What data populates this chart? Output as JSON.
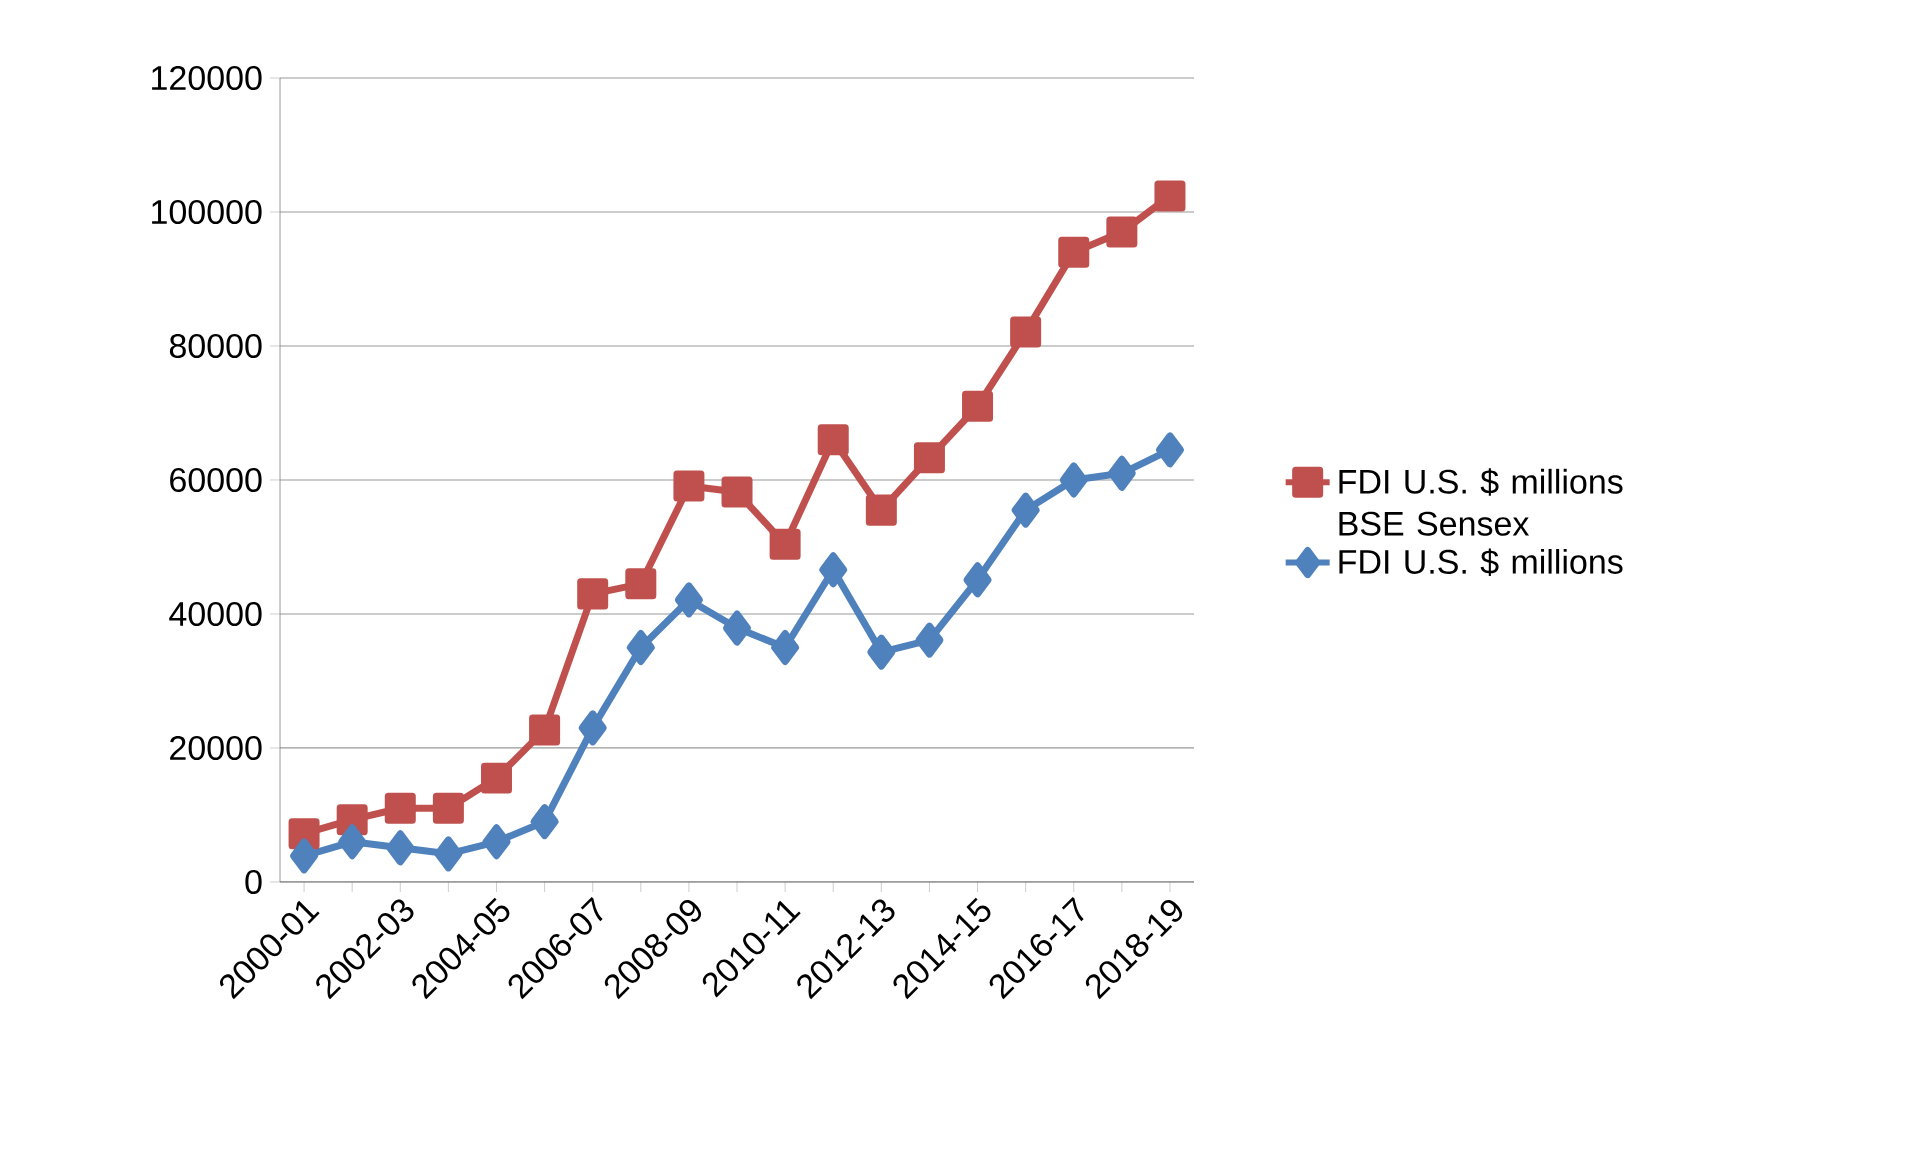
{
  "chart_data": {
    "type": "line",
    "categories": [
      "2000-01",
      null,
      "2002-03",
      null,
      "2004-05",
      null,
      "2006-07",
      null,
      "2008-09",
      null,
      "2010-11",
      null,
      "2012-13",
      null,
      "2014-15",
      null,
      "2016-17",
      null,
      "2018-19"
    ],
    "series": [
      {
        "name": "FDI U.S. $ millions BSE Sensex",
        "color": "#c0504d",
        "marker": "square",
        "values": [
          7200,
          9300,
          11000,
          11000,
          15500,
          22700,
          43000,
          44500,
          59100,
          58200,
          50400,
          66000,
          55500,
          63300,
          71000,
          82100,
          94000,
          97000,
          102400
        ]
      },
      {
        "name": "FDI U.S. $ millions",
        "color": "#4f81bd",
        "marker": "diamond",
        "values": [
          3900,
          6000,
          5100,
          4200,
          6000,
          9000,
          23000,
          35000,
          42100,
          37900,
          35000,
          46600,
          34300,
          36100,
          45100,
          55500,
          60000,
          61000,
          64500
        ]
      }
    ],
    "ylim": [
      0,
      120000
    ],
    "yticks": [
      0,
      20000,
      40000,
      60000,
      80000,
      100000,
      120000
    ],
    "grid": "y",
    "legend": "right",
    "line_style": "solid"
  }
}
